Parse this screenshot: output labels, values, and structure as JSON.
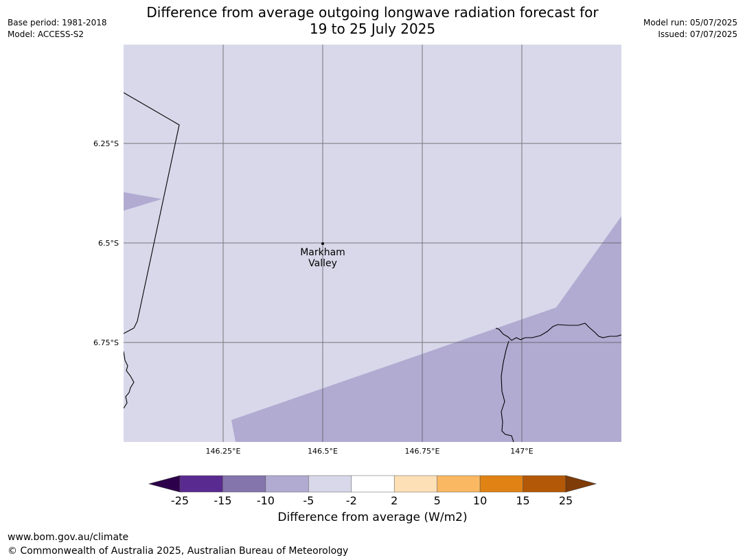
{
  "header": {
    "title_line1": "Difference from average outgoing longwave radiation forecast for",
    "title_line2": "19 to 25 July 2025",
    "base_period": "Base period: 1981-2018",
    "model": "Model: ACCESS-S2",
    "model_run": "Model run: 05/07/2025",
    "issued": "Issued: 07/07/2025"
  },
  "map": {
    "lat_labels": [
      "6.25°S",
      "6.5°S",
      "6.75°S"
    ],
    "lon_labels": [
      "146.25°E",
      "146.5°E",
      "146.75°E",
      "147°E"
    ],
    "place": {
      "line1": "Markham",
      "line2": "Valley"
    },
    "colors": {
      "background_class": "#d8d8ea",
      "anomaly_class": "#b1abd2",
      "gridline": "#555555",
      "coastline": "#000000"
    }
  },
  "colorbar": {
    "tick_labels": [
      "-25",
      "-15",
      "-10",
      "-5",
      "-2",
      "2",
      "5",
      "10",
      "15",
      "25"
    ],
    "segment_colors": [
      "#592a8f",
      "#8575ad",
      "#b1abd2",
      "#d8d8ea",
      "#ffffff",
      "#fee0b6",
      "#fab862",
      "#e08214",
      "#b35806"
    ],
    "extend_low_color": "#2d004b",
    "extend_high_color": "#7f3b08",
    "label": "Difference from average (W/m2)"
  },
  "footer": {
    "url": "www.bom.gov.au/climate",
    "copyright": "© Commonwealth of Australia 2025, Australian Bureau of Meteorology"
  }
}
